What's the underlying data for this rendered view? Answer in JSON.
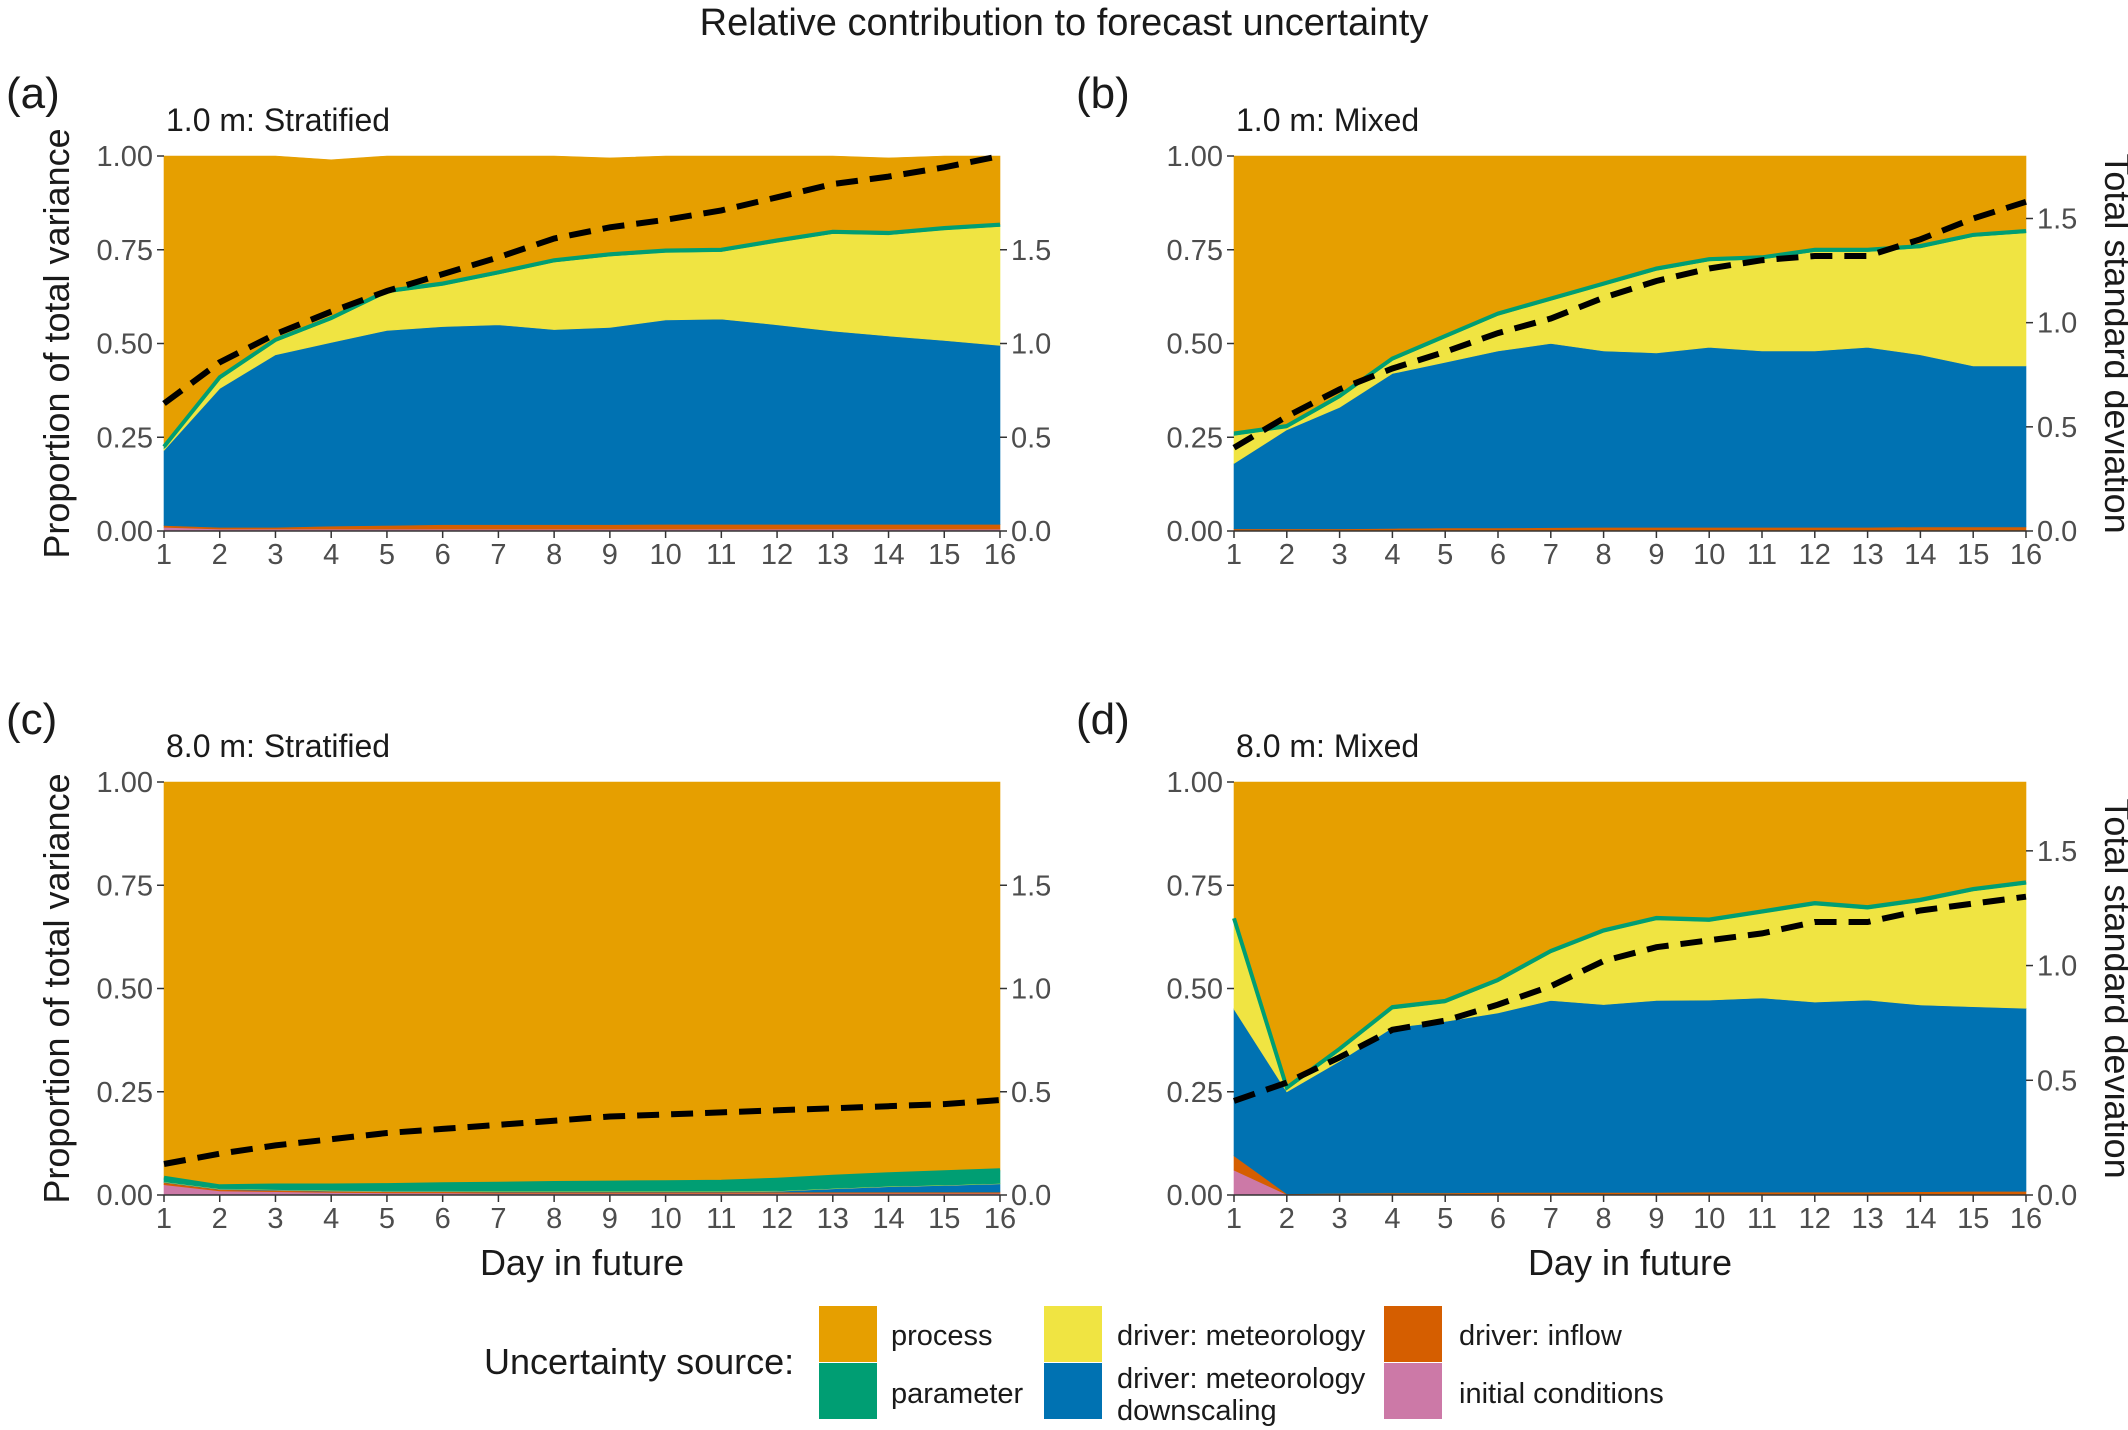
{
  "title": "Relative contribution to forecast uncertainty",
  "legend": {
    "title": "Uncertainty source:",
    "items": [
      {
        "key": "process",
        "label": "process",
        "color": "#E69F00"
      },
      {
        "key": "parameter",
        "label": "parameter",
        "color": "#009E73"
      },
      {
        "key": "meteorology",
        "label": "driver: meteorology",
        "color": "#F0E442"
      },
      {
        "key": "downscaling",
        "label": "driver: meteorology downscaling",
        "lines": [
          "driver: meteorology",
          "downscaling"
        ],
        "color": "#0072B2"
      },
      {
        "key": "inflow",
        "label": "driver: inflow",
        "color": "#D55E00"
      },
      {
        "key": "initial",
        "label": "initial conditions",
        "color": "#CC79A7"
      }
    ]
  },
  "axes": {
    "xlabel": "Day in future",
    "ylabel_left": "Proportion of total variance",
    "ylabel_right": "Total standard deviation",
    "x_ticks": [
      "1",
      "2",
      "3",
      "4",
      "5",
      "6",
      "7",
      "8",
      "9",
      "10",
      "11",
      "12",
      "13",
      "14",
      "15",
      "16"
    ],
    "y_ticks_left": [
      "0.00",
      "0.25",
      "0.50",
      "0.75",
      "1.00"
    ],
    "y_ticks_right": [
      "0.0",
      "0.5",
      "1.0",
      "1.5"
    ]
  },
  "chart_data": [
    {
      "type": "area",
      "panel": "(a)",
      "subtitle": "1.0 m: Stratified",
      "x": [
        1,
        2,
        3,
        4,
        5,
        6,
        7,
        8,
        9,
        10,
        11,
        12,
        13,
        14,
        15,
        16
      ],
      "xlim": [
        1,
        16
      ],
      "ylim": [
        0,
        1
      ],
      "ylim_right": [
        0,
        2
      ],
      "stack_order": [
        "initial",
        "inflow",
        "downscaling",
        "meteorology",
        "parameter",
        "process"
      ],
      "series": [
        {
          "key": "initial",
          "values": [
            0.01,
            0.005,
            0.005,
            0.005,
            0.005,
            0.005,
            0.005,
            0.005,
            0.005,
            0.005,
            0.005,
            0.005,
            0.005,
            0.005,
            0.005,
            0.005
          ]
        },
        {
          "key": "inflow",
          "values": [
            0.005,
            0.005,
            0.005,
            0.008,
            0.01,
            0.012,
            0.012,
            0.012,
            0.012,
            0.013,
            0.013,
            0.013,
            0.013,
            0.013,
            0.013,
            0.013
          ]
        },
        {
          "key": "downscaling",
          "values": [
            0.2,
            0.37,
            0.46,
            0.49,
            0.52,
            0.528,
            0.533,
            0.52,
            0.526,
            0.545,
            0.547,
            0.532,
            0.515,
            0.502,
            0.49,
            0.477
          ]
        },
        {
          "key": "meteorology",
          "values": [
            0.005,
            0.025,
            0.035,
            0.06,
            0.1,
            0.11,
            0.135,
            0.18,
            0.19,
            0.18,
            0.18,
            0.22,
            0.26,
            0.27,
            0.295,
            0.317
          ]
        },
        {
          "key": "parameter",
          "values": [
            0.005,
            0.005,
            0.005,
            0.005,
            0.005,
            0.005,
            0.005,
            0.005,
            0.005,
            0.005,
            0.005,
            0.005,
            0.005,
            0.005,
            0.005,
            0.005
          ]
        },
        {
          "key": "process",
          "values": [
            0.775,
            0.59,
            0.49,
            0.422,
            0.36,
            0.34,
            0.31,
            0.278,
            0.257,
            0.252,
            0.25,
            0.225,
            0.202,
            0.2,
            0.192,
            0.183
          ]
        }
      ],
      "total_sd": [
        0.68,
        0.9,
        1.05,
        1.17,
        1.28,
        1.37,
        1.46,
        1.56,
        1.62,
        1.66,
        1.71,
        1.78,
        1.85,
        1.89,
        1.94,
        2.0
      ]
    },
    {
      "type": "area",
      "panel": "(b)",
      "subtitle": "1.0 m: Mixed",
      "x": [
        1,
        2,
        3,
        4,
        5,
        6,
        7,
        8,
        9,
        10,
        11,
        12,
        13,
        14,
        15,
        16
      ],
      "xlim": [
        1,
        16
      ],
      "ylim": [
        0,
        1
      ],
      "ylim_right": [
        0,
        1.8
      ],
      "stack_order": [
        "initial",
        "inflow",
        "downscaling",
        "meteorology",
        "parameter",
        "process"
      ],
      "series": [
        {
          "key": "initial",
          "values": [
            0.002,
            0.002,
            0.002,
            0.002,
            0.002,
            0.002,
            0.002,
            0.002,
            0.002,
            0.002,
            0.002,
            0.002,
            0.002,
            0.002,
            0.002,
            0.002
          ]
        },
        {
          "key": "inflow",
          "values": [
            0.004,
            0.004,
            0.004,
            0.005,
            0.006,
            0.006,
            0.007,
            0.008,
            0.008,
            0.008,
            0.008,
            0.008,
            0.008,
            0.009,
            0.009,
            0.009
          ]
        },
        {
          "key": "downscaling",
          "values": [
            0.174,
            0.264,
            0.324,
            0.413,
            0.442,
            0.472,
            0.491,
            0.47,
            0.465,
            0.48,
            0.47,
            0.47,
            0.48,
            0.459,
            0.429,
            0.429
          ]
        },
        {
          "key": "meteorology",
          "values": [
            0.075,
            0.005,
            0.025,
            0.035,
            0.065,
            0.095,
            0.115,
            0.175,
            0.22,
            0.23,
            0.245,
            0.265,
            0.255,
            0.285,
            0.345,
            0.355
          ]
        },
        {
          "key": "parameter",
          "values": [
            0.005,
            0.005,
            0.005,
            0.005,
            0.005,
            0.005,
            0.005,
            0.005,
            0.005,
            0.005,
            0.005,
            0.005,
            0.005,
            0.005,
            0.005,
            0.005
          ]
        },
        {
          "key": "process",
          "values": [
            0.74,
            0.72,
            0.64,
            0.54,
            0.48,
            0.42,
            0.38,
            0.34,
            0.3,
            0.275,
            0.27,
            0.25,
            0.25,
            0.24,
            0.21,
            0.2
          ]
        }
      ],
      "total_sd": [
        0.4,
        0.55,
        0.68,
        0.78,
        0.86,
        0.95,
        1.02,
        1.12,
        1.2,
        1.26,
        1.3,
        1.32,
        1.32,
        1.4,
        1.5,
        1.58
      ]
    },
    {
      "type": "area",
      "panel": "(c)",
      "subtitle": "8.0 m: Stratified",
      "x": [
        1,
        2,
        3,
        4,
        5,
        6,
        7,
        8,
        9,
        10,
        11,
        12,
        13,
        14,
        15,
        16
      ],
      "xlim": [
        1,
        16
      ],
      "ylim": [
        0,
        1
      ],
      "ylim_right": [
        0,
        2
      ],
      "stack_order": [
        "initial",
        "inflow",
        "downscaling",
        "meteorology",
        "parameter",
        "process"
      ],
      "series": [
        {
          "key": "initial",
          "values": [
            0.025,
            0.01,
            0.008,
            0.006,
            0.005,
            0.005,
            0.004,
            0.004,
            0.004,
            0.004,
            0.004,
            0.004,
            0.004,
            0.004,
            0.004,
            0.004
          ]
        },
        {
          "key": "inflow",
          "values": [
            0.005,
            0.003,
            0.003,
            0.003,
            0.003,
            0.003,
            0.003,
            0.003,
            0.003,
            0.003,
            0.003,
            0.003,
            0.003,
            0.003,
            0.003,
            0.003
          ]
        },
        {
          "key": "downscaling",
          "values": [
            0.001,
            0.001,
            0.001,
            0.001,
            0.001,
            0.001,
            0.001,
            0.001,
            0.001,
            0.001,
            0.001,
            0.002,
            0.008,
            0.013,
            0.016,
            0.02
          ]
        },
        {
          "key": "meteorology",
          "values": [
            0.001,
            0.001,
            0.001,
            0.001,
            0.001,
            0.001,
            0.001,
            0.001,
            0.001,
            0.001,
            0.001,
            0.001,
            0.001,
            0.001,
            0.001,
            0.001
          ]
        },
        {
          "key": "parameter",
          "values": [
            0.01,
            0.006,
            0.01,
            0.012,
            0.014,
            0.016,
            0.018,
            0.02,
            0.021,
            0.022,
            0.023,
            0.027,
            0.028,
            0.029,
            0.031,
            0.032
          ]
        },
        {
          "key": "process",
          "values": [
            0.958,
            0.979,
            0.977,
            0.977,
            0.976,
            0.974,
            0.973,
            0.971,
            0.97,
            0.969,
            0.968,
            0.963,
            0.956,
            0.95,
            0.945,
            0.94
          ]
        }
      ],
      "total_sd": [
        0.15,
        0.2,
        0.24,
        0.27,
        0.3,
        0.32,
        0.34,
        0.36,
        0.38,
        0.39,
        0.4,
        0.41,
        0.42,
        0.43,
        0.44,
        0.46
      ]
    },
    {
      "type": "area",
      "panel": "(d)",
      "subtitle": "8.0 m: Mixed",
      "x": [
        1,
        2,
        3,
        4,
        5,
        6,
        7,
        8,
        9,
        10,
        11,
        12,
        13,
        14,
        15,
        16
      ],
      "xlim": [
        1,
        16
      ],
      "ylim": [
        0,
        1
      ],
      "ylim_right": [
        0,
        1.8
      ],
      "stack_order": [
        "initial",
        "inflow",
        "downscaling",
        "meteorology",
        "parameter",
        "process"
      ],
      "series": [
        {
          "key": "initial",
          "values": [
            0.06,
            0.001,
            0.001,
            0.001,
            0.001,
            0.001,
            0.001,
            0.001,
            0.001,
            0.001,
            0.001,
            0.001,
            0.001,
            0.001,
            0.001,
            0.001
          ]
        },
        {
          "key": "inflow",
          "values": [
            0.035,
            0.002,
            0.003,
            0.004,
            0.004,
            0.005,
            0.005,
            0.005,
            0.005,
            0.006,
            0.006,
            0.006,
            0.006,
            0.007,
            0.008,
            0.008
          ]
        },
        {
          "key": "downscaling",
          "values": [
            0.355,
            0.247,
            0.32,
            0.4,
            0.415,
            0.435,
            0.465,
            0.455,
            0.465,
            0.465,
            0.47,
            0.46,
            0.465,
            0.452,
            0.447,
            0.443
          ]
        },
        {
          "key": "meteorology",
          "values": [
            0.21,
            0.005,
            0.025,
            0.045,
            0.045,
            0.075,
            0.115,
            0.175,
            0.195,
            0.19,
            0.205,
            0.235,
            0.22,
            0.25,
            0.28,
            0.3
          ]
        },
        {
          "key": "parameter",
          "values": [
            0.01,
            0.005,
            0.005,
            0.005,
            0.005,
            0.005,
            0.005,
            0.005,
            0.005,
            0.005,
            0.005,
            0.005,
            0.005,
            0.005,
            0.005,
            0.005
          ]
        },
        {
          "key": "process",
          "values": [
            0.33,
            0.74,
            0.646,
            0.545,
            0.53,
            0.479,
            0.409,
            0.359,
            0.329,
            0.333,
            0.313,
            0.293,
            0.303,
            0.285,
            0.259,
            0.243
          ]
        }
      ],
      "total_sd": [
        0.41,
        0.49,
        0.6,
        0.72,
        0.76,
        0.83,
        0.91,
        1.02,
        1.08,
        1.11,
        1.14,
        1.19,
        1.19,
        1.24,
        1.27,
        1.3
      ]
    }
  ]
}
